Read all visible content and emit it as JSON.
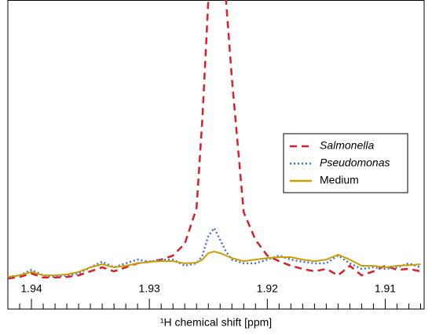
{
  "chart_data": {
    "type": "line",
    "xlabel": "¹H chemical shift [ppm]",
    "x": [
      1.942,
      1.941,
      1.94,
      1.939,
      1.938,
      1.937,
      1.936,
      1.935,
      1.934,
      1.933,
      1.932,
      1.931,
      1.93,
      1.929,
      1.928,
      1.927,
      1.926,
      1.9255,
      1.925,
      1.9245,
      1.924,
      1.9235,
      1.923,
      1.922,
      1.921,
      1.92,
      1.919,
      1.918,
      1.917,
      1.916,
      1.915,
      1.914,
      1.913,
      1.912,
      1.911,
      1.91,
      1.909,
      1.908,
      1.907
    ],
    "series": [
      {
        "name": "Salmonella",
        "color": "#d9202a",
        "style": "dashed",
        "values": [
          9.9,
          10.4,
          11.5,
          10.2,
          10.2,
          10.4,
          10.9,
          12.2,
          13.5,
          12.2,
          13.5,
          14.8,
          15.3,
          16.0,
          17.3,
          21.1,
          32.6,
          61.8,
          100,
          138,
          138,
          100,
          74.5,
          31.3,
          22.4,
          17.3,
          15.5,
          14.0,
          13.0,
          12.2,
          13.0,
          10.9,
          14.0,
          10.9,
          12.2,
          14.0,
          12.7,
          13.0,
          12.2
        ]
      },
      {
        "name": "Pseudomonas",
        "color": "#4a6fd6",
        "style": "dotted",
        "values": [
          10.4,
          10.9,
          12.7,
          10.9,
          10.4,
          10.9,
          11.5,
          13.5,
          15.3,
          13.5,
          14.8,
          16.0,
          15.3,
          16.0,
          16.0,
          14.0,
          14.8,
          17.3,
          23.7,
          26.2,
          22.4,
          18.6,
          16.0,
          14.8,
          14.8,
          16.0,
          17.3,
          16.0,
          15.3,
          14.8,
          14.8,
          17.3,
          14.8,
          13.0,
          13.5,
          13.0,
          13.5,
          14.8,
          13.5
        ]
      },
      {
        "name": "Medium",
        "color": "#c8a000",
        "style": "solid",
        "values": [
          10.4,
          10.9,
          12.0,
          10.9,
          10.9,
          11.2,
          12.0,
          13.5,
          14.5,
          13.5,
          14.0,
          14.8,
          15.3,
          15.5,
          15.5,
          14.8,
          15.0,
          16.0,
          18.1,
          18.6,
          18.1,
          17.3,
          16.5,
          15.5,
          16.0,
          16.5,
          16.8,
          16.8,
          16.0,
          15.5,
          16.0,
          17.6,
          16.0,
          14.0,
          14.0,
          13.5,
          14.0,
          14.2,
          14.5
        ]
      }
    ],
    "xlim": [
      1.942,
      1.9067
    ],
    "ylim": [
      0,
      100
    ],
    "xticks": [
      1.94,
      1.93,
      1.92,
      1.91
    ],
    "xminorticks": [
      1.942,
      1.941,
      1.939,
      1.938,
      1.937,
      1.936,
      1.935,
      1.934,
      1.933,
      1.932,
      1.931,
      1.929,
      1.928,
      1.927,
      1.926,
      1.925,
      1.924,
      1.923,
      1.922,
      1.921,
      1.919,
      1.918,
      1.917,
      1.916,
      1.915,
      1.914,
      1.913,
      1.912,
      1.911,
      1.909,
      1.908,
      1.907
    ],
    "legend": "right"
  }
}
